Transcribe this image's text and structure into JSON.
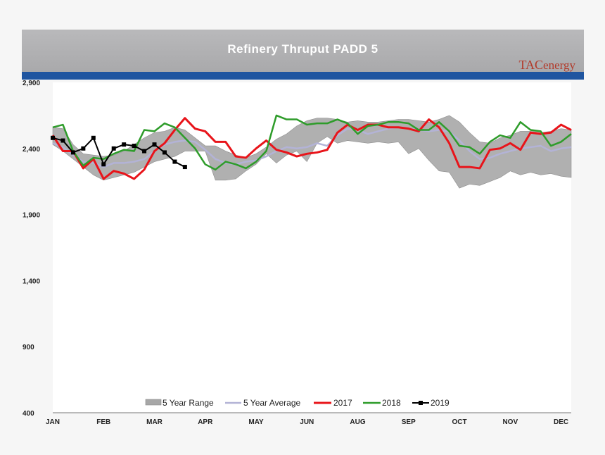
{
  "header": {
    "title": "Refinery Thruput PADD 5",
    "logo_primary": "TAC",
    "logo_secondary": "energy"
  },
  "colors": {
    "range_fill": "#a7a7a7",
    "avg_line": "#b3b3d6",
    "y2017": "#e8141a",
    "y2018": "#2e9c2a",
    "y2019": "#000000",
    "title_band": "#b0b0b2",
    "blue_band": "#1f55a0"
  },
  "chart_data": {
    "type": "line",
    "title": "Refinery Thruput PADD 5",
    "xlabel": "",
    "ylabel": "",
    "ylim": [
      400,
      2900
    ],
    "xlim": [
      1,
      52
    ],
    "yticks": [
      "2,900",
      "2,400",
      "1,900",
      "1,400",
      "900",
      "400"
    ],
    "ytick_values": [
      2900,
      2400,
      1900,
      1400,
      900,
      400
    ],
    "xticks": [
      "JAN",
      "FEB",
      "MAR",
      "APR",
      "MAY",
      "JUN",
      "AUG",
      "SEP",
      "OCT",
      "NOV",
      "DEC"
    ],
    "xtick_weeks": [
      1,
      6,
      11,
      16,
      21,
      26,
      31,
      36,
      41,
      46,
      51
    ],
    "legend": {
      "range": "5 Year Range",
      "average": "5 Year Average",
      "y2017": "2017",
      "y2018": "2018",
      "y2019": "2019"
    },
    "range_high": [
      2560,
      2550,
      2430,
      2360,
      2350,
      2340,
      2350,
      2380,
      2430,
      2480,
      2520,
      2530,
      2560,
      2540,
      2480,
      2420,
      2420,
      2380,
      2350,
      2330,
      2360,
      2410,
      2470,
      2510,
      2570,
      2610,
      2630,
      2630,
      2620,
      2600,
      2610,
      2600,
      2600,
      2610,
      2620,
      2620,
      2610,
      2600,
      2620,
      2650,
      2600,
      2520,
      2450,
      2440,
      2480,
      2500,
      2530,
      2530,
      2520,
      2530,
      2550,
      2540
    ],
    "range_low": [
      2430,
      2380,
      2320,
      2260,
      2200,
      2160,
      2180,
      2200,
      2220,
      2260,
      2300,
      2320,
      2340,
      2380,
      2380,
      2380,
      2160,
      2160,
      2170,
      2230,
      2280,
      2360,
      2290,
      2350,
      2380,
      2300,
      2440,
      2490,
      2440,
      2460,
      2450,
      2440,
      2450,
      2440,
      2450,
      2360,
      2400,
      2310,
      2230,
      2220,
      2100,
      2130,
      2120,
      2150,
      2180,
      2230,
      2200,
      2220,
      2200,
      2210,
      2190,
      2180
    ],
    "series": [
      {
        "name": "5 Year Average",
        "key": "avg",
        "values": [
          2440,
          2410,
          2350,
          2300,
          2290,
          2260,
          2290,
          2290,
          2300,
          2320,
          2380,
          2430,
          2450,
          2460,
          2450,
          2390,
          2320,
          2290,
          2280,
          2300,
          2310,
          2340,
          2380,
          2410,
          2400,
          2410,
          2440,
          2420,
          2500,
          2550,
          2540,
          2510,
          2530,
          2550,
          2560,
          2550,
          2540,
          2530,
          2540,
          2530,
          2460,
          2380,
          2320,
          2330,
          2360,
          2380,
          2400,
          2410,
          2420,
          2380,
          2400,
          2410
        ]
      },
      {
        "name": "2017",
        "key": "y2017",
        "values": [
          2500,
          2380,
          2380,
          2250,
          2320,
          2170,
          2230,
          2210,
          2170,
          2240,
          2380,
          2440,
          2540,
          2630,
          2550,
          2530,
          2450,
          2450,
          2340,
          2330,
          2400,
          2460,
          2390,
          2370,
          2340,
          2360,
          2370,
          2390,
          2520,
          2580,
          2540,
          2580,
          2580,
          2560,
          2560,
          2550,
          2530,
          2620,
          2560,
          2440,
          2260,
          2260,
          2250,
          2390,
          2400,
          2440,
          2390,
          2520,
          2510,
          2520,
          2580,
          2540
        ]
      },
      {
        "name": "2018",
        "key": "y2018",
        "values": [
          2560,
          2580,
          2380,
          2270,
          2330,
          2320,
          2360,
          2390,
          2380,
          2540,
          2530,
          2590,
          2560,
          2480,
          2400,
          2280,
          2240,
          2300,
          2280,
          2250,
          2300,
          2380,
          2650,
          2620,
          2620,
          2580,
          2590,
          2590,
          2620,
          2590,
          2510,
          2570,
          2580,
          2600,
          2600,
          2590,
          2540,
          2540,
          2600,
          2530,
          2420,
          2410,
          2360,
          2450,
          2500,
          2480,
          2600,
          2540,
          2530,
          2420,
          2450,
          2510
        ]
      },
      {
        "name": "2019",
        "key": "y2019",
        "values": [
          2480,
          2460,
          2370,
          2400,
          2480,
          2280,
          2400,
          2430,
          2420,
          2380,
          2430,
          2370,
          2300,
          2260
        ]
      }
    ]
  }
}
